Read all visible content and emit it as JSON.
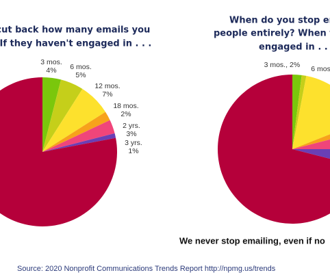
{
  "chart_data": [
    {
      "type": "pie",
      "title": [
        "u cut back how many emails you",
        "e? If they haven't engaged in . . ."
      ],
      "categories": [
        "3 mos.",
        "6 mos.",
        "12 mos.",
        "18 mos.",
        "2 yrs.",
        "3 yrs.",
        null
      ],
      "values": [
        4,
        5,
        7,
        2,
        3,
        1,
        78
      ],
      "value_labels": [
        "4%",
        "5%",
        "7%",
        "2%",
        "3%",
        "1%",
        null
      ],
      "colors": [
        "#7ac70c",
        "#c5cf1a",
        "#fde12d",
        "#f7a21b",
        "#f0457a",
        "#6a3fb5",
        "#b5003a"
      ]
    },
    {
      "type": "pie",
      "title": [
        "When do you stop ema",
        "people entirely? When the",
        "engaged in . . ."
      ],
      "categories": [
        "3 mos.,",
        "6 mos.",
        null,
        null,
        null,
        null,
        null
      ],
      "values": [
        2,
        1,
        16,
        2,
        4,
        4,
        71
      ],
      "value_labels": [
        "2%",
        null,
        null,
        null,
        null,
        null,
        null
      ],
      "colors": [
        "#7ac70c",
        "#c5cf1a",
        "#fde12d",
        "#f7a21b",
        "#f0457a",
        "#6a3fb5",
        "#b5003a"
      ]
    }
  ],
  "note": "We never stop emailing, even if no",
  "source": "Source: 2020 Nonprofit Communications Trends Report  http://npmg.us/trends"
}
